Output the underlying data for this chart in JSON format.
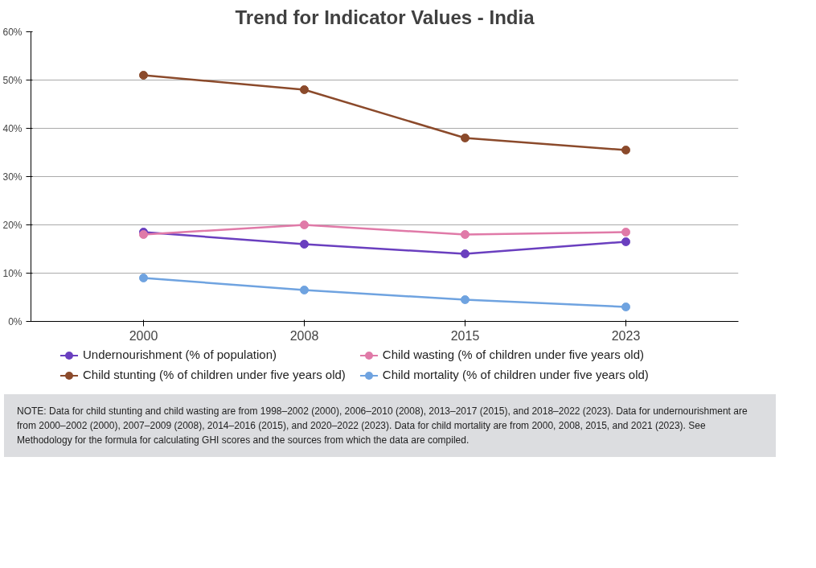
{
  "chart_data": {
    "type": "line",
    "title": "Trend for Indicator Values - India",
    "categories": [
      "2000",
      "2008",
      "2015",
      "2023"
    ],
    "series": [
      {
        "name": "Undernourishment (% of population)",
        "color": "#6a3fbf",
        "values": [
          18.5,
          16,
          14,
          16.5
        ]
      },
      {
        "name": "Child wasting (% of children under five years old)",
        "color": "#e07aa8",
        "values": [
          18,
          20,
          18,
          18.5
        ]
      },
      {
        "name": "Child stunting (% of children under five years old)",
        "color": "#8b4a2b",
        "values": [
          51,
          48,
          38,
          35.5
        ]
      },
      {
        "name": "Child mortality (% of children under five years old)",
        "color": "#6fa3e0",
        "values": [
          9,
          6.5,
          4.5,
          3
        ]
      }
    ],
    "ylim": [
      0,
      60
    ],
    "yticks": [
      {
        "value": 0,
        "label": "0%"
      },
      {
        "value": 10,
        "label": "10%"
      },
      {
        "value": 20,
        "label": "20%"
      },
      {
        "value": 30,
        "label": "30%"
      },
      {
        "value": 40,
        "label": "40%"
      },
      {
        "value": 50,
        "label": "50%"
      },
      {
        "value": 60,
        "label": "60%"
      }
    ],
    "grid": "y",
    "legend": "bottom",
    "marker": "circle",
    "line_style": "solid",
    "annotations": [
      "NOTE: Data for child stunting and child wasting are from 1998–2002 (2000), 2006–2010 (2008), 2013–2017 (2015), and 2018–2022 (2023). Data for undernourishment are from 2000–2002 (2000), 2007–2009 (2008), 2014–2016 (2015), and 2020–2022 (2023). Data for child mortality are from 2000, 2008, 2015, and 2021 (2023). See Methodology for the formula for calculating GHI scores and the sources from which the data are compiled."
    ]
  }
}
